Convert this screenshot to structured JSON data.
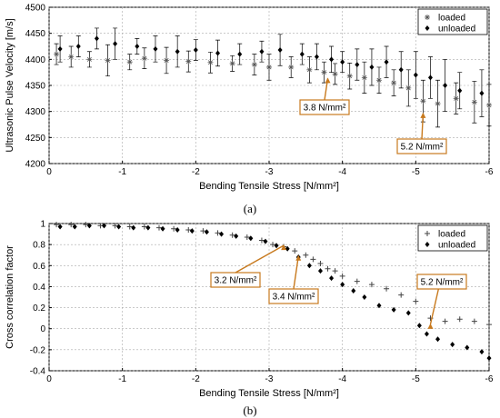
{
  "chart_data": [
    {
      "panel": "(a)",
      "type": "scatter",
      "xlabel": "Bending Tensile Stress [N/mm²]",
      "ylabel": "Ultrasonic Pulse Velocity [m/s]",
      "xlim": [
        0,
        -6
      ],
      "ylim": [
        4200,
        4500
      ],
      "xticks": [
        0,
        -1,
        -2,
        -3,
        -4,
        -5,
        -6
      ],
      "yticks": [
        4200,
        4250,
        4300,
        4350,
        4400,
        4450,
        4500
      ],
      "grid": true,
      "legend": "top-right",
      "series": [
        {
          "name": "loaded",
          "marker": "star",
          "x": [
            -0.1,
            -0.3,
            -0.55,
            -0.8,
            -1.1,
            -1.3,
            -1.6,
            -1.9,
            -2.2,
            -2.5,
            -2.8,
            -3.0,
            -3.3,
            -3.55,
            -3.75,
            -3.9,
            -4.1,
            -4.3,
            -4.5,
            -4.7,
            -4.9,
            -5.1,
            -5.3,
            -5.55,
            -5.8,
            -6.0
          ],
          "y": [
            4410,
            4405,
            4400,
            4398,
            4395,
            4402,
            4398,
            4396,
            4394,
            4392,
            4390,
            4385,
            4385,
            4380,
            4375,
            4372,
            4368,
            4365,
            4360,
            4355,
            4345,
            4320,
            4315,
            4325,
            4318,
            4312
          ],
          "err": [
            20,
            20,
            15,
            30,
            15,
            20,
            25,
            20,
            20,
            15,
            20,
            25,
            20,
            25,
            20,
            20,
            25,
            30,
            25,
            25,
            35,
            40,
            45,
            30,
            40,
            40
          ]
        },
        {
          "name": "unloaded",
          "marker": "diamond",
          "x": [
            -0.15,
            -0.4,
            -0.65,
            -0.9,
            -1.2,
            -1.45,
            -1.75,
            -2.0,
            -2.3,
            -2.6,
            -2.9,
            -3.15,
            -3.45,
            -3.65,
            -3.85,
            -4.0,
            -4.2,
            -4.4,
            -4.6,
            -4.8,
            -5.0,
            -5.2,
            -5.4,
            -5.6,
            -5.9
          ],
          "y": [
            4420,
            4425,
            4440,
            4430,
            4425,
            4420,
            4415,
            4418,
            4412,
            4410,
            4415,
            4418,
            4410,
            4405,
            4400,
            4395,
            4390,
            4385,
            4395,
            4380,
            4370,
            4365,
            4350,
            4340,
            4335
          ],
          "err": [
            25,
            20,
            20,
            30,
            15,
            25,
            30,
            20,
            25,
            20,
            20,
            30,
            20,
            25,
            25,
            20,
            30,
            35,
            30,
            35,
            45,
            40,
            50,
            35,
            45
          ]
        }
      ],
      "annotations": [
        {
          "text": "3.8 N/mm²",
          "x": -3.8,
          "y": 4365
        },
        {
          "text": "5.2 N/mm²",
          "x": -5.1,
          "y": 4298
        }
      ]
    },
    {
      "panel": "(b)",
      "type": "scatter",
      "xlabel": "Bending Tensile Stress [N/mm²]",
      "ylabel": "Cross correlation factor",
      "xlim": [
        0,
        -6
      ],
      "ylim": [
        -0.4,
        1
      ],
      "xticks": [
        0,
        -1,
        -2,
        -3,
        -4,
        -5,
        -6
      ],
      "yticks": [
        -0.4,
        -0.2,
        0,
        0.2,
        0.4,
        0.6,
        0.8,
        1
      ],
      "grid": true,
      "legend": "top-right",
      "series": [
        {
          "name": "loaded",
          "marker": "plus",
          "x": [
            -0.1,
            -0.3,
            -0.5,
            -0.7,
            -0.9,
            -1.1,
            -1.3,
            -1.5,
            -1.7,
            -1.9,
            -2.1,
            -2.3,
            -2.5,
            -2.7,
            -2.9,
            -3.05,
            -3.2,
            -3.35,
            -3.5,
            -3.6,
            -3.7,
            -3.8,
            -3.9,
            -4.0,
            -4.2,
            -4.4,
            -4.6,
            -4.8,
            -5.0,
            -5.2,
            -5.4,
            -5.6,
            -5.8,
            -6.0
          ],
          "y": [
            0.99,
            0.99,
            0.99,
            0.98,
            0.98,
            0.97,
            0.97,
            0.96,
            0.95,
            0.94,
            0.93,
            0.91,
            0.89,
            0.87,
            0.84,
            0.8,
            0.78,
            0.74,
            0.7,
            0.66,
            0.62,
            0.57,
            0.55,
            0.5,
            0.45,
            0.42,
            0.38,
            0.32,
            0.26,
            0.1,
            0.07,
            0.09,
            0.07,
            0.04
          ]
        },
        {
          "name": "unloaded",
          "marker": "diamond",
          "x": [
            -0.15,
            -0.35,
            -0.55,
            -0.75,
            -0.95,
            -1.15,
            -1.35,
            -1.55,
            -1.75,
            -1.95,
            -2.15,
            -2.35,
            -2.55,
            -2.75,
            -2.95,
            -3.1,
            -3.25,
            -3.4,
            -3.55,
            -3.7,
            -3.85,
            -4.0,
            -4.15,
            -4.3,
            -4.5,
            -4.7,
            -4.9,
            -5.05,
            -5.15,
            -5.3,
            -5.5,
            -5.7,
            -5.9,
            -6.0
          ],
          "y": [
            0.97,
            0.97,
            0.98,
            0.98,
            0.97,
            0.96,
            0.96,
            0.95,
            0.94,
            0.93,
            0.92,
            0.9,
            0.88,
            0.86,
            0.83,
            0.79,
            0.76,
            0.68,
            0.6,
            0.55,
            0.48,
            0.42,
            0.36,
            0.3,
            0.22,
            0.18,
            0.15,
            0.03,
            -0.05,
            -0.1,
            -0.15,
            -0.18,
            -0.22,
            -0.28
          ]
        }
      ],
      "annotations": [
        {
          "text": "3.2 N/mm²",
          "x": -3.2,
          "y": 0.8
        },
        {
          "text": "3.4 N/mm²",
          "x": -3.4,
          "y": 0.7
        },
        {
          "text": "5.2 N/mm²",
          "x": -5.2,
          "y": 0.05
        }
      ]
    }
  ]
}
